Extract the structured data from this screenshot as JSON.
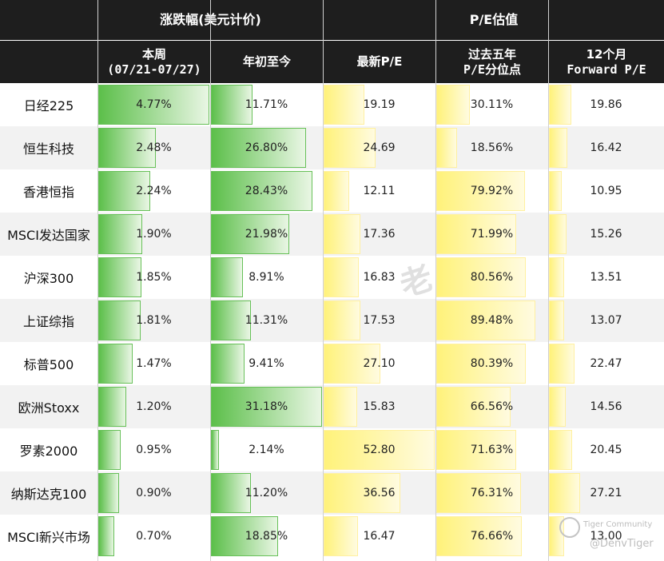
{
  "headers": {
    "group_return": "涨跌幅(美元计价)",
    "group_pe": "P/E估值",
    "weekly_line1": "本周",
    "weekly_line2": "(07/21-07/27)",
    "ytd": "年初至今",
    "latest_pe": "最新P/E",
    "pct_line1": "过去五年",
    "pct_line2": "P/E分位点",
    "fwd_line1": "12个月",
    "fwd_line2": "Forward P/E"
  },
  "rows": [
    {
      "name": "日经225",
      "weekly": "4.77%",
      "ytd": "11.71%",
      "pe": "19.19",
      "pct": "30.11%",
      "fwd": "19.86"
    },
    {
      "name": "恒生科技",
      "weekly": "2.48%",
      "ytd": "26.80%",
      "pe": "24.69",
      "pct": "18.56%",
      "fwd": "16.42"
    },
    {
      "name": "香港恒指",
      "weekly": "2.24%",
      "ytd": "28.43%",
      "pe": "12.11",
      "pct": "79.92%",
      "fwd": "10.95"
    },
    {
      "name": "MSCI发达国家",
      "weekly": "1.90%",
      "ytd": "21.98%",
      "pe": "17.36",
      "pct": "71.99%",
      "fwd": "15.26"
    },
    {
      "name": "沪深300",
      "weekly": "1.85%",
      "ytd": "8.91%",
      "pe": "16.83",
      "pct": "80.56%",
      "fwd": "13.51"
    },
    {
      "name": "上证综指",
      "weekly": "1.81%",
      "ytd": "11.31%",
      "pe": "17.53",
      "pct": "89.48%",
      "fwd": "13.07"
    },
    {
      "name": "标普500",
      "weekly": "1.47%",
      "ytd": "9.41%",
      "pe": "27.10",
      "pct": "80.39%",
      "fwd": "22.47"
    },
    {
      "name": "欧洲Stoxx",
      "weekly": "1.20%",
      "ytd": "31.18%",
      "pe": "15.83",
      "pct": "66.56%",
      "fwd": "14.56"
    },
    {
      "name": "罗素2000",
      "weekly": "0.95%",
      "ytd": "2.14%",
      "pe": "52.80",
      "pct": "71.63%",
      "fwd": "20.45"
    },
    {
      "name": "纳斯达克100",
      "weekly": "0.90%",
      "ytd": "11.20%",
      "pe": "36.56",
      "pct": "76.31%",
      "fwd": "27.21"
    },
    {
      "name": "MSCI新兴市场",
      "weekly": "0.70%",
      "ytd": "18.85%",
      "pe": "16.47",
      "pct": "76.66%",
      "fwd": "13.00"
    }
  ],
  "watermark": "老",
  "brand": {
    "community": "Tiger Community",
    "handle": "@DenvTiger"
  },
  "colors": {
    "header_bg": "#1e1e1e",
    "green_bar": "#5cbf4a",
    "yellow_bar": "#fff27a",
    "alt_row": "#f2f2f2"
  }
}
